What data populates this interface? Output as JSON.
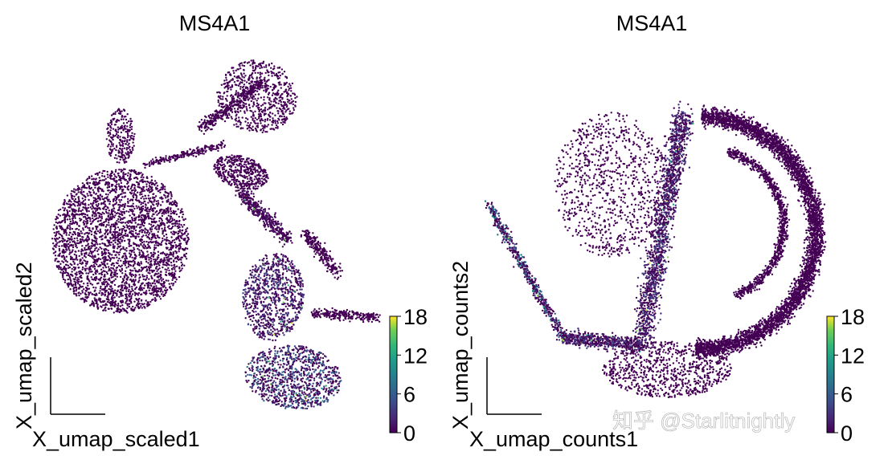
{
  "chart_data": [
    {
      "type": "scatter",
      "title": "MS4A1",
      "xlabel": "X_umap_scaled1",
      "ylabel": "X_umap_scaled2",
      "color_label": "MS4A1",
      "colorbar": {
        "ticks": [
          0,
          6,
          12,
          18
        ],
        "range": [
          0,
          18
        ],
        "colormap": "viridis"
      },
      "grid": false,
      "n_points_approx": 14000,
      "clusters": [
        {
          "region": "left round cluster",
          "expression": 0
        },
        {
          "region": "small top-left arm",
          "expression": 0
        },
        {
          "region": "top-center bridge",
          "expression": 0
        },
        {
          "region": "top-right cluster",
          "expression": 0
        },
        {
          "region": "middle lower elongated cluster",
          "expression": 3
        },
        {
          "region": "bottom right blob",
          "expression": 5
        },
        {
          "region": "right arm",
          "expression": 0
        }
      ]
    },
    {
      "type": "scatter",
      "title": "MS4A1",
      "xlabel": "X_umap_counts1",
      "ylabel": "X_umap_counts2",
      "color_label": "MS4A1",
      "colorbar": {
        "ticks": [
          0,
          6,
          12,
          18
        ],
        "range": [
          0,
          18
        ],
        "colormap": "viridis"
      },
      "grid": false,
      "n_points_approx": 14000,
      "clusters": [
        {
          "region": "outer right band",
          "expression": 0
        },
        {
          "region": "inner curved band",
          "expression": 3
        },
        {
          "region": "left tail",
          "expression": 6
        },
        {
          "region": "upper sparse region",
          "expression": 0
        }
      ]
    }
  ],
  "colors": {
    "viridis_low": "#440154",
    "viridis_mid": "#21918c",
    "viridis_high": "#fde725"
  },
  "watermark": "知乎 @Starlitnightly"
}
